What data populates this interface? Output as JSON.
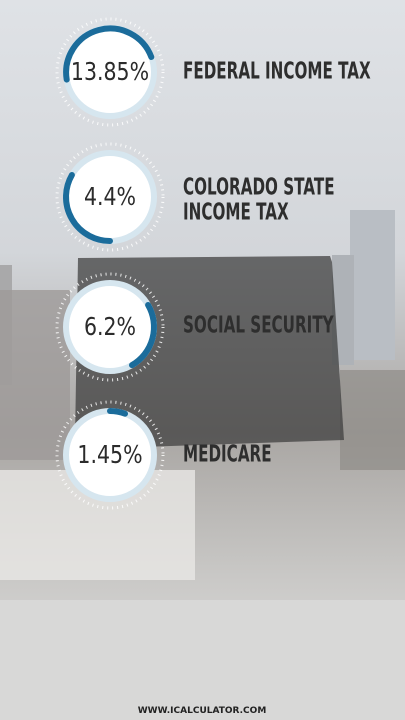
{
  "items": [
    {
      "value": "13.85%",
      "label": "FEDERAL INCOME TAX"
    },
    {
      "value": "4.4%",
      "label": [
        "COLORADO STATE",
        "INCOME TAX"
      ]
    },
    {
      "value": "6.2%",
      "label": "SOCIAL SECURITY"
    },
    {
      "value": "1.45%",
      "label": "MEDICARE"
    }
  ],
  "footer": "WWW.ICALCULATOR.COM"
}
